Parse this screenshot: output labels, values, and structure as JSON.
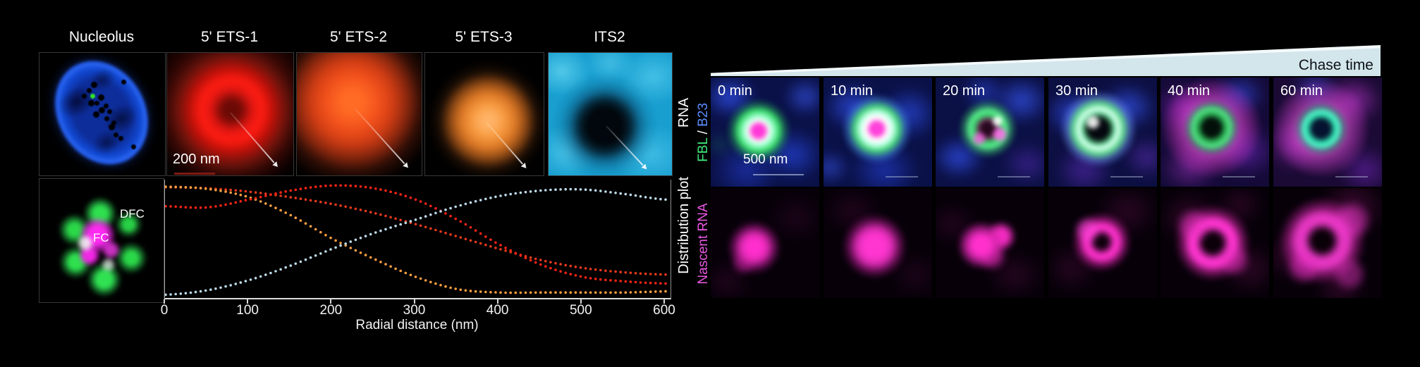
{
  "figure": {
    "left": {
      "panel_titles": [
        "Nucleolus",
        "5' ETS-1",
        "5' ETS-2",
        "5' ETS-3",
        "ITS2"
      ],
      "row_label_rna": "RNA",
      "row_label_plot": "Distribution plot",
      "scale_bar_label": "200 nm",
      "dfc_label": "DFC",
      "fc_label": "FC"
    },
    "right": {
      "chase_time_label": "Chase time",
      "time_labels": [
        "0 min",
        "10 min",
        "20 min",
        "30 min",
        "40 min",
        "60 min"
      ],
      "row1_label_fbl": "FBL",
      "row1_label_sep": " / ",
      "row1_label_b23": "B23",
      "row2_label": "Nascent RNA",
      "scale_bar_label": "500 nm"
    },
    "colors": {
      "fbl_green": "#3fe87c",
      "b23_blue": "#5a8cff",
      "nascent_magenta": "#e858e0",
      "wedge_fill": "#d3e6ec",
      "scale_bar_red": "#7e1a14"
    }
  },
  "chart_data": {
    "type": "line",
    "style": "dotted",
    "title": "",
    "xlabel": "Radial distance (nm)",
    "ylabel": "Distribution plot",
    "xlim": [
      0,
      600
    ],
    "ylim": [
      0,
      1.0
    ],
    "xticks": [
      0,
      100,
      200,
      300,
      400,
      500,
      600
    ],
    "grid": false,
    "legend": false,
    "x": [
      0,
      50,
      100,
      150,
      200,
      250,
      300,
      350,
      400,
      450,
      500,
      550,
      600
    ],
    "series": [
      {
        "name": "5' ETS-2",
        "color": "#e8391c",
        "values": [
          0.97,
          0.96,
          0.93,
          0.88,
          0.82,
          0.74,
          0.64,
          0.53,
          0.42,
          0.32,
          0.25,
          0.21,
          0.19
        ]
      },
      {
        "name": "5' ETS-3",
        "color": "#ffa042",
        "values": [
          0.975,
          0.955,
          0.88,
          0.72,
          0.51,
          0.33,
          0.17,
          0.06,
          0.03,
          0.03,
          0.03,
          0.03,
          0.04
        ]
      },
      {
        "name": "5' ETS-1",
        "color": "#ff2416",
        "values": [
          0.8,
          0.79,
          0.86,
          0.94,
          0.985,
          0.96,
          0.86,
          0.68,
          0.46,
          0.28,
          0.17,
          0.13,
          0.11
        ]
      },
      {
        "name": "ITS2",
        "color": "#bcd9e8",
        "values": [
          0.01,
          0.05,
          0.14,
          0.27,
          0.42,
          0.56,
          0.68,
          0.8,
          0.89,
          0.94,
          0.95,
          0.91,
          0.86
        ]
      }
    ]
  }
}
